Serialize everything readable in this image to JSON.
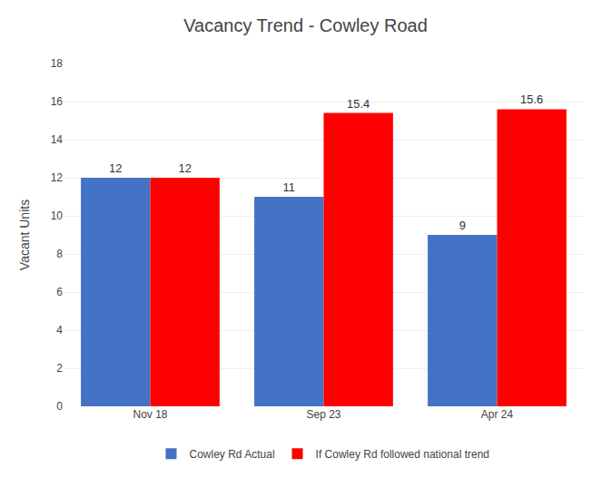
{
  "chart_data": {
    "type": "bar",
    "title": "Vacancy Trend - Cowley Road",
    "ylabel": "Vacant Units",
    "categories": [
      "Nov 18",
      "Sep 23",
      "Apr 24"
    ],
    "series": [
      {
        "name": "Cowley Rd Actual",
        "color": "#4472C4",
        "values": [
          12,
          11,
          9
        ]
      },
      {
        "name": "If Cowley Rd followed national trend",
        "color": "#FF0000",
        "values": [
          12,
          15.4,
          15.6
        ]
      }
    ],
    "ylim": [
      0,
      18
    ],
    "yticks": [
      0,
      2,
      4,
      6,
      8,
      10,
      12,
      14,
      16,
      18
    ],
    "grid": true,
    "legend": "bottom",
    "data_labels": true
  }
}
